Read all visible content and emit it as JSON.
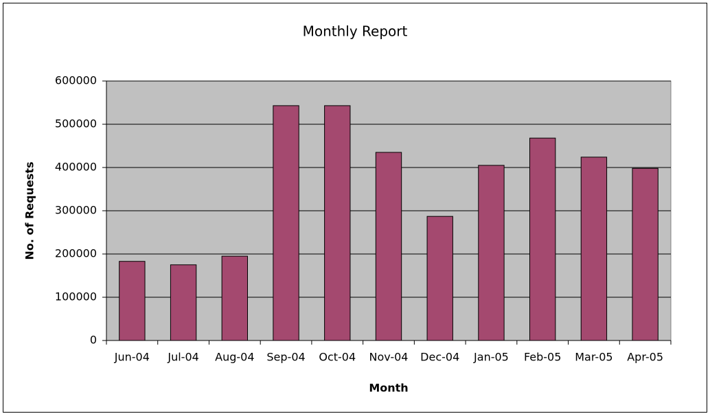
{
  "chart_data": {
    "type": "bar",
    "title": "Monthly Report",
    "x_label": "Month",
    "y_label": "No. of Requests",
    "categories": [
      "Jun-04",
      "Jul-04",
      "Aug-04",
      "Sep-04",
      "Oct-04",
      "Nov-04",
      "Dec-04",
      "Jan-05",
      "Feb-05",
      "Mar-05",
      "Apr-05"
    ],
    "values": [
      183000,
      175000,
      195000,
      543000,
      543000,
      435000,
      287000,
      405000,
      468000,
      424000,
      398000
    ],
    "color": "#a4496f",
    "ylim": [
      0,
      600000
    ],
    "yticks": [
      0,
      100000,
      200000,
      300000,
      400000,
      500000,
      600000
    ],
    "grid": true
  }
}
